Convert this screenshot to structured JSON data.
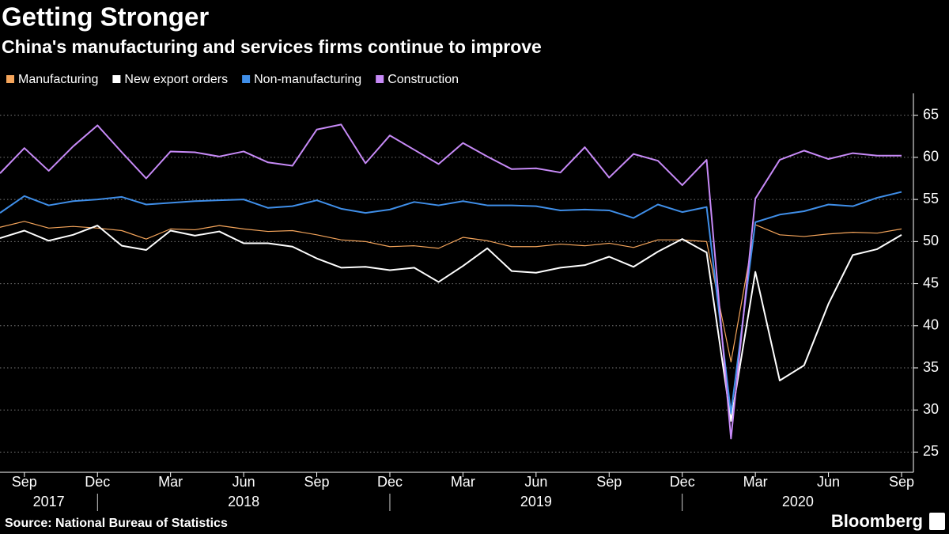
{
  "chart_data": {
    "type": "line",
    "title": "Getting Stronger",
    "subtitle": "China's manufacturing and services firms continue to improve",
    "source": "Source: National Bureau of Statistics",
    "brand": "Bloomberg",
    "x": [
      "2017-08",
      "2017-09",
      "2017-10",
      "2017-11",
      "2017-12",
      "2018-01",
      "2018-02",
      "2018-03",
      "2018-04",
      "2018-05",
      "2018-06",
      "2018-07",
      "2018-08",
      "2018-09",
      "2018-10",
      "2018-11",
      "2018-12",
      "2019-01",
      "2019-02",
      "2019-03",
      "2019-04",
      "2019-05",
      "2019-06",
      "2019-07",
      "2019-08",
      "2019-09",
      "2019-10",
      "2019-11",
      "2019-12",
      "2020-01",
      "2020-02",
      "2020-03",
      "2020-04",
      "2020-05",
      "2020-06",
      "2020-07",
      "2020-08",
      "2020-09"
    ],
    "xticks": [
      {
        "value": "2017-09",
        "label": "Sep"
      },
      {
        "value": "2017-12",
        "label": "Dec"
      },
      {
        "value": "2018-03",
        "label": "Mar"
      },
      {
        "value": "2018-06",
        "label": "Jun"
      },
      {
        "value": "2018-09",
        "label": "Sep"
      },
      {
        "value": "2018-12",
        "label": "Dec"
      },
      {
        "value": "2019-03",
        "label": "Mar"
      },
      {
        "value": "2019-06",
        "label": "Jun"
      },
      {
        "value": "2019-09",
        "label": "Sep"
      },
      {
        "value": "2019-12",
        "label": "Dec"
      },
      {
        "value": "2020-03",
        "label": "Mar"
      },
      {
        "value": "2020-06",
        "label": "Jun"
      },
      {
        "value": "2020-09",
        "label": "Sep"
      }
    ],
    "year_labels": [
      "2017",
      "2018",
      "2019",
      "2020"
    ],
    "ylim": [
      22.6,
      67.6
    ],
    "yticks": [
      25,
      30,
      35,
      40,
      45,
      50,
      55,
      60,
      65
    ],
    "grid": true,
    "series": [
      {
        "name": "Manufacturing",
        "color": "#f5a55b",
        "values": [
          51.7,
          52.4,
          51.6,
          51.8,
          51.6,
          51.3,
          50.3,
          51.5,
          51.4,
          51.9,
          51.5,
          51.2,
          51.3,
          50.8,
          50.2,
          50.0,
          49.4,
          49.5,
          49.2,
          50.5,
          50.1,
          49.4,
          49.4,
          49.7,
          49.5,
          49.8,
          49.3,
          50.2,
          50.2,
          50.0,
          35.7,
          52.0,
          50.8,
          50.6,
          50.9,
          51.1,
          51.0,
          51.5
        ]
      },
      {
        "name": "New export orders",
        "color": "#ffffff",
        "values": [
          50.4,
          51.3,
          50.1,
          50.8,
          51.9,
          49.5,
          49.0,
          51.3,
          50.7,
          51.2,
          49.8,
          49.8,
          49.4,
          48.0,
          46.9,
          47.0,
          46.6,
          46.9,
          45.2,
          47.1,
          49.2,
          46.5,
          46.3,
          46.9,
          47.2,
          48.2,
          47.0,
          48.8,
          50.3,
          48.7,
          28.7,
          46.4,
          33.5,
          35.3,
          42.6,
          48.4,
          49.1,
          50.8
        ]
      },
      {
        "name": "Non-manufacturing",
        "color": "#3f8ee8",
        "values": [
          53.4,
          55.4,
          54.3,
          54.8,
          55.0,
          55.3,
          54.4,
          54.6,
          54.8,
          54.9,
          55.0,
          54.0,
          54.2,
          54.9,
          53.9,
          53.4,
          53.8,
          54.7,
          54.3,
          54.8,
          54.3,
          54.3,
          54.2,
          53.7,
          53.8,
          53.7,
          52.8,
          54.4,
          53.5,
          54.1,
          29.6,
          52.3,
          53.2,
          53.6,
          54.4,
          54.2,
          55.2,
          55.9
        ]
      },
      {
        "name": "Construction",
        "color": "#c78af7",
        "values": [
          58.1,
          61.1,
          58.4,
          61.3,
          63.8,
          60.6,
          57.5,
          60.7,
          60.6,
          60.1,
          60.7,
          59.4,
          59.0,
          63.3,
          63.9,
          59.3,
          62.6,
          60.9,
          59.2,
          61.7,
          60.1,
          58.6,
          58.7,
          58.2,
          61.2,
          57.6,
          60.4,
          59.6,
          56.7,
          59.7,
          26.6,
          55.1,
          59.7,
          60.8,
          59.8,
          60.5,
          60.2,
          60.2
        ]
      }
    ]
  }
}
